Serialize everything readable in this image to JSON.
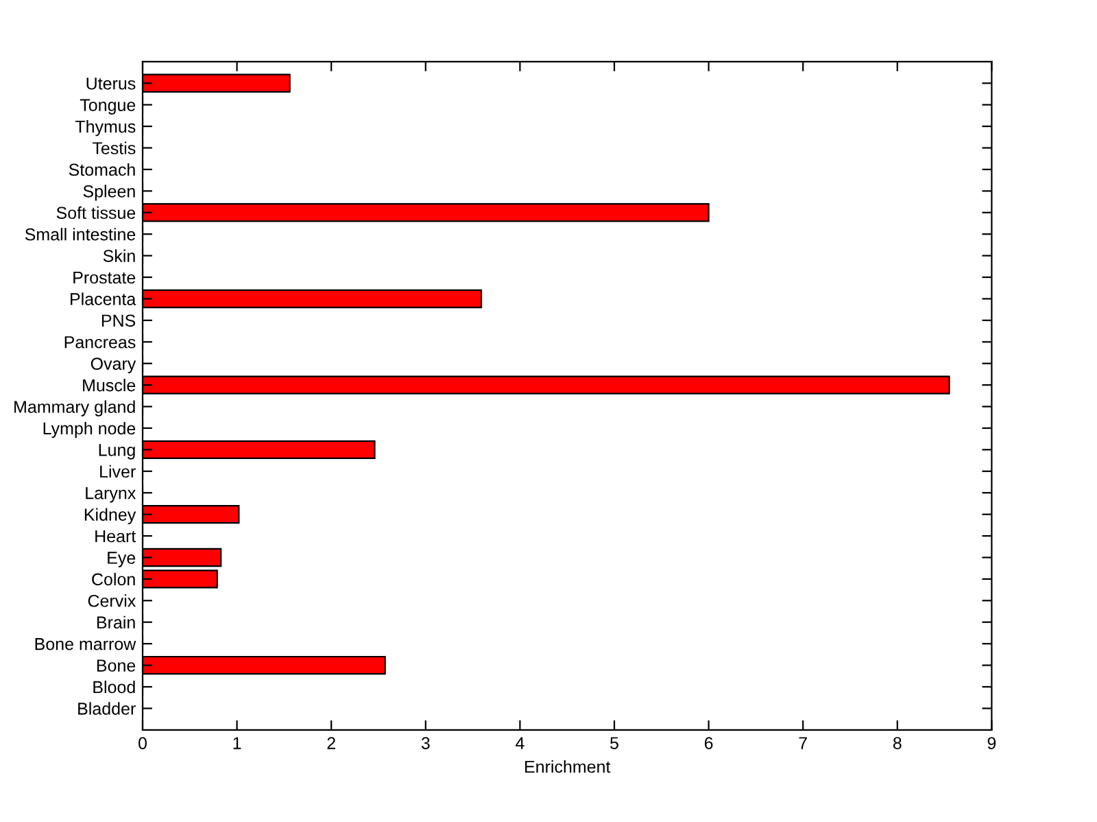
{
  "chart_data": {
    "type": "bar",
    "orientation": "horizontal",
    "xlabel": "Enrichment",
    "categories": [
      "Uterus",
      "Tongue",
      "Thymus",
      "Testis",
      "Stomach",
      "Spleen",
      "Soft tissue",
      "Small intestine",
      "Skin",
      "Prostate",
      "Placenta",
      "PNS",
      "Pancreas",
      "Ovary",
      "Muscle",
      "Mammary gland",
      "Lymph node",
      "Lung",
      "Liver",
      "Larynx",
      "Kidney",
      "Heart",
      "Eye",
      "Colon",
      "Cervix",
      "Brain",
      "Bone marrow",
      "Bone",
      "Blood",
      "Bladder"
    ],
    "values": [
      1.56,
      0,
      0,
      0,
      0,
      0,
      6.0,
      0,
      0,
      0,
      3.59,
      0,
      0,
      0,
      8.55,
      0,
      0,
      2.46,
      0,
      0,
      1.02,
      0,
      0.83,
      0.79,
      0,
      0,
      0,
      2.57,
      0,
      0
    ],
    "color": "#ff0000",
    "xlim": [
      0,
      9
    ],
    "xticks": [
      0,
      1,
      2,
      3,
      4,
      5,
      6,
      7,
      8,
      9
    ],
    "grid": false,
    "legend": false
  }
}
